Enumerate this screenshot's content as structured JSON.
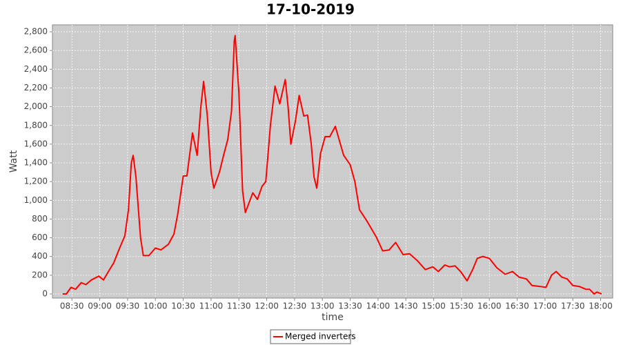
{
  "chart_data": {
    "type": "line",
    "title": "17-10-2019",
    "x_label": "time",
    "y_label": "Watt",
    "x": [
      "08:20",
      "08:24",
      "08:29",
      "08:34",
      "08:40",
      "08:45",
      "08:51",
      "08:59",
      "09:04",
      "09:10",
      "09:15",
      "09:21",
      "09:27",
      "09:31",
      "09:34",
      "09:36",
      "09:39",
      "09:44",
      "09:47",
      "09:53",
      "10:00",
      "10:06",
      "10:14",
      "10:20",
      "10:24",
      "10:30",
      "10:34",
      "10:40",
      "10:45",
      "10:49",
      "10:52",
      "10:56",
      "11:00",
      "11:03",
      "11:09",
      "11:14",
      "11:18",
      "11:22",
      "11:25",
      "11:26",
      "11:30",
      "11:34",
      "11:37",
      "11:45",
      "11:50",
      "11:55",
      "11:59",
      "12:04",
      "12:09",
      "12:14",
      "12:20",
      "12:23",
      "12:26",
      "12:31",
      "12:35",
      "12:40",
      "12:44",
      "12:48",
      "12:51",
      "12:54",
      "12:58",
      "13:03",
      "13:08",
      "13:14",
      "13:18",
      "13:23",
      "13:30",
      "13:35",
      "13:40",
      "13:48",
      "13:58",
      "14:05",
      "14:12",
      "14:19",
      "14:27",
      "14:34",
      "14:42",
      "14:51",
      "14:59",
      "15:05",
      "15:12",
      "15:17",
      "15:23",
      "15:29",
      "15:36",
      "15:42",
      "15:47",
      "15:53",
      "16:00",
      "16:08",
      "16:17",
      "16:25",
      "16:32",
      "16:40",
      "16:46",
      "16:55",
      "17:01",
      "17:07",
      "17:12",
      "17:18",
      "17:24",
      "17:30",
      "17:37",
      "17:44",
      "17:48",
      "17:53",
      "17:56",
      "18:01"
    ],
    "series": [
      {
        "name": "Merged inverters",
        "color": "#ff0000",
        "values": [
          0,
          0,
          70,
          50,
          120,
          100,
          150,
          190,
          150,
          250,
          330,
          480,
          620,
          900,
          1400,
          1480,
          1250,
          600,
          410,
          410,
          490,
          470,
          530,
          640,
          850,
          1260,
          1260,
          1720,
          1480,
          2000,
          2270,
          1900,
          1300,
          1130,
          1300,
          1500,
          1650,
          1950,
          2700,
          2760,
          2150,
          1100,
          870,
          1080,
          1010,
          1150,
          1200,
          1800,
          2220,
          2030,
          2290,
          2000,
          1600,
          1850,
          2120,
          1900,
          1910,
          1600,
          1250,
          1130,
          1500,
          1680,
          1680,
          1790,
          1650,
          1480,
          1380,
          1200,
          900,
          780,
          610,
          460,
          470,
          550,
          420,
          430,
          360,
          260,
          290,
          240,
          310,
          290,
          300,
          240,
          140,
          260,
          380,
          400,
          380,
          280,
          210,
          240,
          180,
          160,
          90,
          80,
          70,
          200,
          240,
          180,
          160,
          90,
          80,
          50,
          50,
          0,
          20,
          0
        ]
      }
    ],
    "xlim": [
      "08:09",
      "18:13"
    ],
    "xticks": [
      "08:30",
      "09:00",
      "09:30",
      "10:00",
      "10:30",
      "11:00",
      "11:30",
      "12:00",
      "12:30",
      "13:00",
      "13:30",
      "14:00",
      "14:30",
      "15:00",
      "15:30",
      "16:00",
      "16:30",
      "17:00",
      "17:30",
      "18:00"
    ],
    "ylim": [
      -44,
      2874
    ],
    "yticks": [
      0,
      200,
      400,
      600,
      800,
      {
        "value": 1000,
        "label": "1,000"
      },
      {
        "value": 1200,
        "label": "1,200"
      },
      {
        "value": 1400,
        "label": "1,400"
      },
      {
        "value": 1600,
        "label": "1,600"
      },
      {
        "value": 1800,
        "label": "1,800"
      },
      {
        "value": 2000,
        "label": "2,000"
      },
      {
        "value": 2200,
        "label": "2,200"
      },
      {
        "value": 2400,
        "label": "2,400"
      },
      {
        "value": 2600,
        "label": "2,600"
      },
      {
        "value": 2800,
        "label": "2,800"
      }
    ],
    "grid": true,
    "legend": "bottom"
  }
}
